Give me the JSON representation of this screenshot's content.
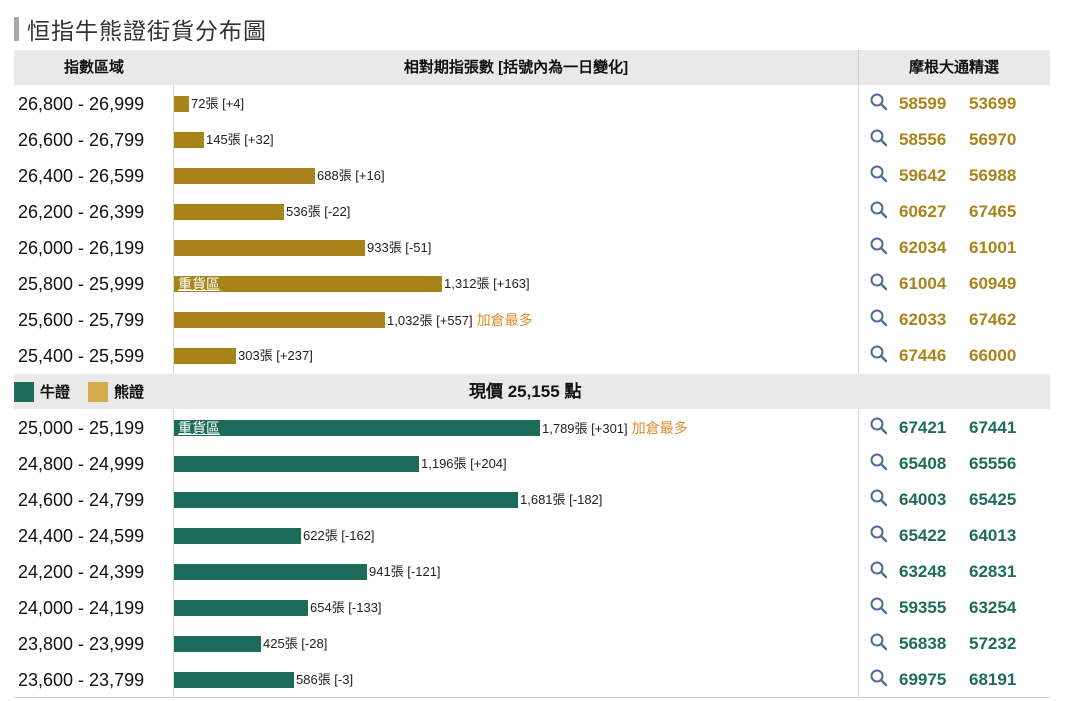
{
  "title": "恒指牛熊證街貨分布圖",
  "headers": {
    "range": "指數區域",
    "bars": "相對期指張數 [括號內為一日變化]",
    "picks": "摩根大通精選"
  },
  "legend": {
    "bull": "牛證",
    "bear": "熊證"
  },
  "current_price": "現價 25,155 點",
  "heavy_label": "重貨區",
  "most_added_label": "加倉最多",
  "colors": {
    "bear": "#a8841b",
    "bull": "#1e6b5c",
    "highlight": "#e08a2e"
  },
  "chart_data": {
    "type": "bar",
    "unit": "張",
    "bear_rows": [
      {
        "range": "26,800 - 26,999",
        "value": 72,
        "label": "72張 [+4]",
        "heavy": false,
        "most_added": false,
        "codes": [
          "58599",
          "53699"
        ]
      },
      {
        "range": "26,600 - 26,799",
        "value": 145,
        "label": "145張 [+32]",
        "heavy": false,
        "most_added": false,
        "codes": [
          "58556",
          "56970"
        ]
      },
      {
        "range": "26,400 - 26,599",
        "value": 688,
        "label": "688張 [+16]",
        "heavy": false,
        "most_added": false,
        "codes": [
          "59642",
          "56988"
        ]
      },
      {
        "range": "26,200 - 26,399",
        "value": 536,
        "label": "536張 [-22]",
        "heavy": false,
        "most_added": false,
        "codes": [
          "60627",
          "67465"
        ]
      },
      {
        "range": "26,000 - 26,199",
        "value": 933,
        "label": "933張 [-51]",
        "heavy": false,
        "most_added": false,
        "codes": [
          "62034",
          "61001"
        ]
      },
      {
        "range": "25,800 - 25,999",
        "value": 1312,
        "label": "1,312張 [+163]",
        "heavy": true,
        "most_added": false,
        "codes": [
          "61004",
          "60949"
        ]
      },
      {
        "range": "25,600 - 25,799",
        "value": 1032,
        "label": "1,032張 [+557]",
        "heavy": false,
        "most_added": true,
        "codes": [
          "62033",
          "67462"
        ]
      },
      {
        "range": "25,400 - 25,599",
        "value": 303,
        "label": "303張 [+237]",
        "heavy": false,
        "most_added": false,
        "codes": [
          "67446",
          "66000"
        ]
      }
    ],
    "bull_rows": [
      {
        "range": "25,000 - 25,199",
        "value": 1789,
        "label": "1,789張 [+301]",
        "heavy": true,
        "most_added": true,
        "codes": [
          "67421",
          "67441"
        ]
      },
      {
        "range": "24,800 - 24,999",
        "value": 1196,
        "label": "1,196張 [+204]",
        "heavy": false,
        "most_added": false,
        "codes": [
          "65408",
          "65556"
        ]
      },
      {
        "range": "24,600 - 24,799",
        "value": 1681,
        "label": "1,681張 [-182]",
        "heavy": false,
        "most_added": false,
        "codes": [
          "64003",
          "65425"
        ]
      },
      {
        "range": "24,400 - 24,599",
        "value": 622,
        "label": "622張 [-162]",
        "heavy": false,
        "most_added": false,
        "codes": [
          "65422",
          "64013"
        ]
      },
      {
        "range": "24,200 - 24,399",
        "value": 941,
        "label": "941張 [-121]",
        "heavy": false,
        "most_added": false,
        "codes": [
          "63248",
          "62831"
        ]
      },
      {
        "range": "24,000 - 24,199",
        "value": 654,
        "label": "654張 [-133]",
        "heavy": false,
        "most_added": false,
        "codes": [
          "59355",
          "63254"
        ]
      },
      {
        "range": "23,800 - 23,999",
        "value": 425,
        "label": "425張 [-28]",
        "heavy": false,
        "most_added": false,
        "codes": [
          "56838",
          "57232"
        ]
      },
      {
        "range": "23,600 - 23,799",
        "value": 586,
        "label": "586張 [-3]",
        "heavy": false,
        "most_added": false,
        "codes": [
          "69975",
          "68191"
        ]
      }
    ]
  }
}
